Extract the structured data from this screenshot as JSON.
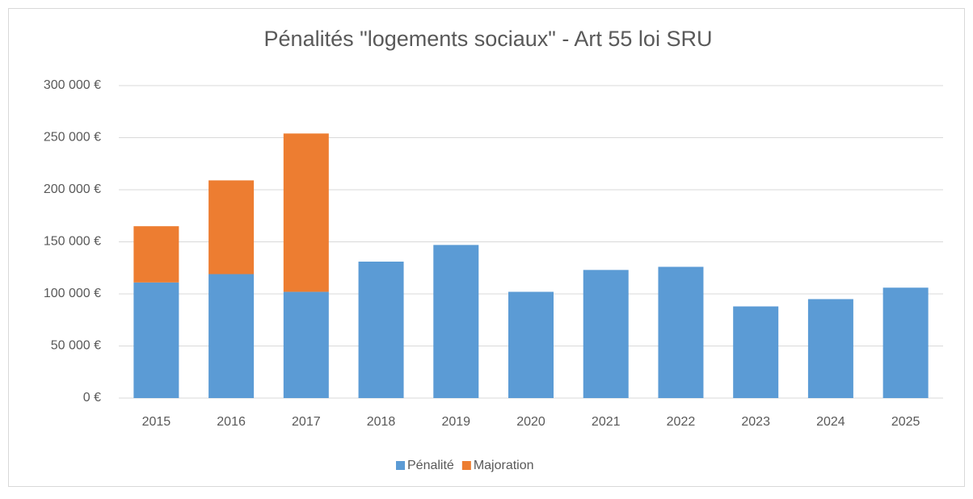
{
  "chart_data": {
    "type": "stacked_bar",
    "title": "Pénalités \"logements sociaux\" - Art 55 loi SRU",
    "categories": [
      "2015",
      "2016",
      "2017",
      "2018",
      "2019",
      "2020",
      "2021",
      "2022",
      "2023",
      "2024",
      "2025"
    ],
    "series": [
      {
        "name": "Pénalité",
        "color": "#5b9bd5",
        "values": [
          111000,
          119000,
          102000,
          131000,
          147000,
          102000,
          123000,
          126000,
          88000,
          95000,
          106000
        ]
      },
      {
        "name": "Majoration",
        "color": "#ed7d31",
        "values": [
          54000,
          90000,
          152000,
          null,
          null,
          null,
          null,
          null,
          null,
          null,
          null
        ]
      }
    ],
    "ylim": [
      0,
      300000
    ],
    "yticks": [
      {
        "value": 0,
        "label": "0 €"
      },
      {
        "value": 50000,
        "label": "50 000 €"
      },
      {
        "value": 100000,
        "label": "100 000 €"
      },
      {
        "value": 150000,
        "label": "150 000 €"
      },
      {
        "value": 200000,
        "label": "200 000 €"
      },
      {
        "value": 250000,
        "label": "250 000 €"
      },
      {
        "value": 300000,
        "label": "300 000 €"
      }
    ],
    "grid": true,
    "legend": "bottom"
  }
}
